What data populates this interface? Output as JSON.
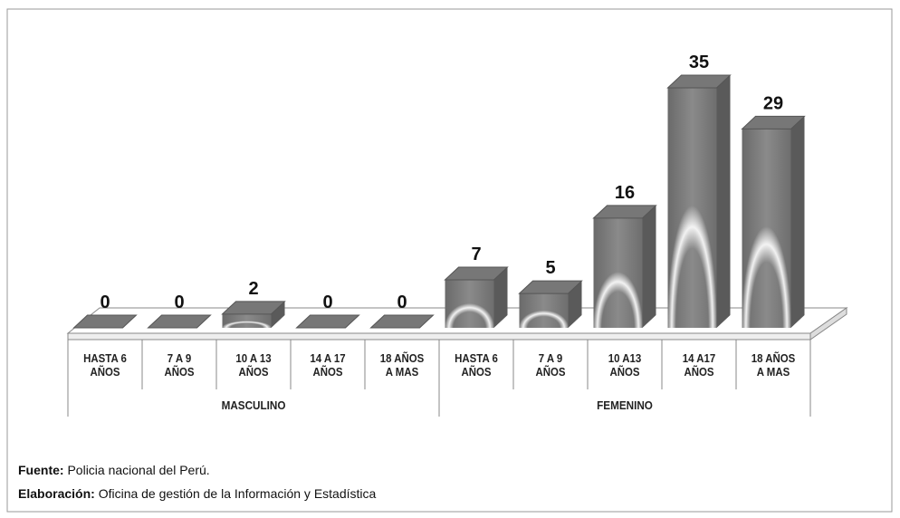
{
  "chart_data": {
    "type": "bar3d",
    "groups": [
      {
        "name": "MASCULINO",
        "categories": [
          "HASTA 6 AÑOS",
          "7 A 9 AÑOS",
          "10 A 13 AÑOS",
          "14 A 17 AÑOS",
          "18 AÑOS A MAS"
        ],
        "values": [
          0,
          0,
          2,
          0,
          0
        ]
      },
      {
        "name": "FEMENINO",
        "categories": [
          "HASTA 6 AÑOS",
          "7 A 9 AÑOS",
          "10 A13 AÑOS",
          "14 A17 AÑOS",
          "18 AÑOS A MAS"
        ],
        "values": [
          7,
          5,
          16,
          35,
          29
        ]
      }
    ],
    "color": "#777777"
  },
  "footer": {
    "source_label": "Fuente:",
    "source": "Policia nacional del Perú.",
    "credit_label": "Elaboración:",
    "credit": "Oficina de gestión de la Información y Estadística"
  }
}
